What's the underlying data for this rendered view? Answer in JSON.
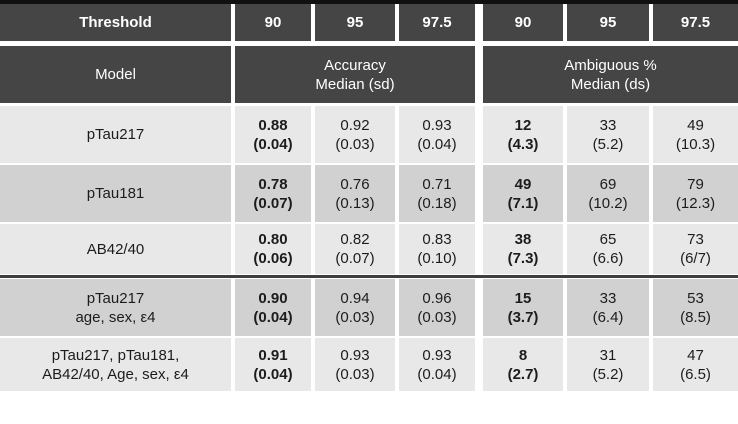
{
  "colors": {
    "header_bg": "#454545",
    "top_border": "#101010",
    "separator": "#3f3f3f",
    "row_light": "#e8e8e8",
    "row_dark": "#d1d1d1",
    "header_text": "#ffffff",
    "body_text": "#1c1c1c"
  },
  "header": {
    "threshold_label": "Threshold",
    "thresholds": [
      "90",
      "95",
      "97.5",
      "90",
      "95",
      "97.5"
    ],
    "model_label": "Model",
    "group1_line1": "Accuracy",
    "group1_line2": "Median (sd)",
    "group2_line1": "Ambiguous %",
    "group2_line2": "Median (ds)"
  },
  "rows": [
    {
      "model_line1": "pTau217",
      "model_line2": "",
      "cells": [
        {
          "main": "0.88",
          "sub": "(0.04)"
        },
        {
          "main": "0.92",
          "sub": "(0.03)"
        },
        {
          "main": "0.93",
          "sub": "(0.04)"
        },
        {
          "main": "12",
          "sub": "(4.3)"
        },
        {
          "main": "33",
          "sub": "(5.2)"
        },
        {
          "main": "49",
          "sub": "(10.3)"
        }
      ]
    },
    {
      "model_line1": "pTau181",
      "model_line2": "",
      "cells": [
        {
          "main": "0.78",
          "sub": "(0.07)"
        },
        {
          "main": "0.76",
          "sub": "(0.13)"
        },
        {
          "main": "0.71",
          "sub": "(0.18)"
        },
        {
          "main": "49",
          "sub": "(7.1)"
        },
        {
          "main": "69",
          "sub": "(10.2)"
        },
        {
          "main": "79",
          "sub": "(12.3)"
        }
      ]
    },
    {
      "model_line1": "AB42/40",
      "model_line2": "",
      "cells": [
        {
          "main": "0.80",
          "sub": "(0.06)"
        },
        {
          "main": "0.82",
          "sub": "(0.07)"
        },
        {
          "main": "0.83",
          "sub": "(0.10)"
        },
        {
          "main": "38",
          "sub": "(7.3)"
        },
        {
          "main": "65",
          "sub": "(6.6)"
        },
        {
          "main": "73",
          "sub": "(6/7)"
        }
      ]
    },
    {
      "model_line1": "pTau217",
      "model_line2": "age, sex, ε4",
      "cells": [
        {
          "main": "0.90",
          "sub": "(0.04)"
        },
        {
          "main": "0.94",
          "sub": "(0.03)"
        },
        {
          "main": "0.96",
          "sub": "(0.03)"
        },
        {
          "main": "15",
          "sub": "(3.7)"
        },
        {
          "main": "33",
          "sub": "(6.4)"
        },
        {
          "main": "53",
          "sub": "(8.5)"
        }
      ]
    },
    {
      "model_line1": "pTau217, pTau181,",
      "model_line2": "AB42/40, Age, sex, ε4",
      "cells": [
        {
          "main": "0.91",
          "sub": "(0.04)"
        },
        {
          "main": "0.93",
          "sub": "(0.03)"
        },
        {
          "main": "0.93",
          "sub": "(0.04)"
        },
        {
          "main": "8",
          "sub": "(2.7)"
        },
        {
          "main": "31",
          "sub": "(5.2)"
        },
        {
          "main": "47",
          "sub": "(6.5)"
        }
      ]
    }
  ],
  "chart_data": {
    "type": "table",
    "title": "",
    "column_groups": [
      {
        "label": "Accuracy Median (sd)",
        "thresholds": [
          "90",
          "95",
          "97.5"
        ]
      },
      {
        "label": "Ambiguous % Median (ds)",
        "thresholds": [
          "90",
          "95",
          "97.5"
        ]
      }
    ],
    "row_header": "Model",
    "rows": [
      {
        "model": "pTau217",
        "accuracy_median": [
          0.88,
          0.92,
          0.93
        ],
        "accuracy_sd": [
          0.04,
          0.03,
          0.04
        ],
        "ambiguous_pct_median": [
          12,
          33,
          49
        ],
        "ambiguous_pct_sd": [
          4.3,
          5.2,
          10.3
        ]
      },
      {
        "model": "pTau181",
        "accuracy_median": [
          0.78,
          0.76,
          0.71
        ],
        "accuracy_sd": [
          0.07,
          0.13,
          0.18
        ],
        "ambiguous_pct_median": [
          49,
          69,
          79
        ],
        "ambiguous_pct_sd": [
          7.1,
          10.2,
          12.3
        ]
      },
      {
        "model": "AB42/40",
        "accuracy_median": [
          0.8,
          0.82,
          0.83
        ],
        "accuracy_sd": [
          0.06,
          0.07,
          0.1
        ],
        "ambiguous_pct_median": [
          38,
          65,
          73
        ],
        "ambiguous_pct_sd": [
          7.3,
          6.6,
          "6/7"
        ]
      },
      {
        "model": "pTau217 age, sex, ε4",
        "accuracy_median": [
          0.9,
          0.94,
          0.96
        ],
        "accuracy_sd": [
          0.04,
          0.03,
          0.03
        ],
        "ambiguous_pct_median": [
          15,
          33,
          53
        ],
        "ambiguous_pct_sd": [
          3.7,
          6.4,
          8.5
        ]
      },
      {
        "model": "pTau217, pTau181, AB42/40, Age, sex, ε4",
        "accuracy_median": [
          0.91,
          0.93,
          0.93
        ],
        "accuracy_sd": [
          0.04,
          0.03,
          0.04
        ],
        "ambiguous_pct_median": [
          8,
          31,
          47
        ],
        "ambiguous_pct_sd": [
          2.7,
          5.2,
          6.5
        ]
      }
    ],
    "notes": "Bold column = threshold 90 in each group; thick separator line between single-biomarker models and combined models"
  }
}
